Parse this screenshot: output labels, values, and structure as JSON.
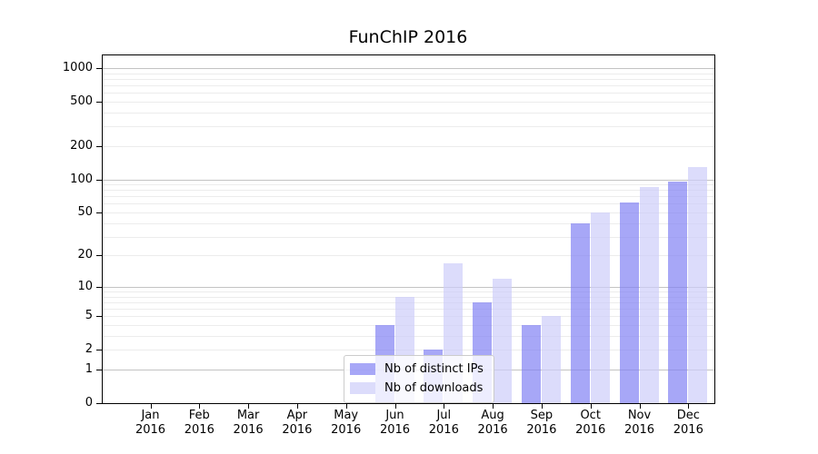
{
  "chart_data": {
    "type": "bar",
    "title": "FunChIP 2016",
    "categories": [
      "Jan",
      "Feb",
      "Mar",
      "Apr",
      "May",
      "Jun",
      "Jul",
      "Aug",
      "Sep",
      "Oct",
      "Nov",
      "Dec"
    ],
    "year": "2016",
    "series": [
      {
        "name": "Nb of distinct IPs",
        "color": "#8282f4",
        "values": [
          0,
          0,
          0,
          0,
          0,
          4,
          2,
          7,
          4,
          40,
          62,
          95
        ]
      },
      {
        "name": "Nb of downloads",
        "color": "#cdcdfa",
        "values": [
          0,
          0,
          0,
          0,
          0,
          8,
          17,
          12,
          5,
          50,
          85,
          130
        ]
      }
    ],
    "xlabel": "",
    "ylabel": "",
    "scale": "log1p",
    "yticks": [
      0,
      1,
      2,
      5,
      10,
      20,
      50,
      100,
      200,
      500,
      1000
    ],
    "major_gridlines": [
      1,
      10,
      100,
      1000
    ],
    "ylim": [
      0,
      1300
    ],
    "grid": "on",
    "legend_position": "lower-center",
    "bar_alpha": 0.7,
    "colors": {
      "major_grid": "#c3c3c3",
      "minor_grid": "#ececec",
      "spine": "#000000",
      "background": "#ffffff"
    }
  },
  "legend": {
    "items": [
      {
        "label": "Nb of distinct IPs"
      },
      {
        "label": "Nb of downloads"
      }
    ]
  }
}
